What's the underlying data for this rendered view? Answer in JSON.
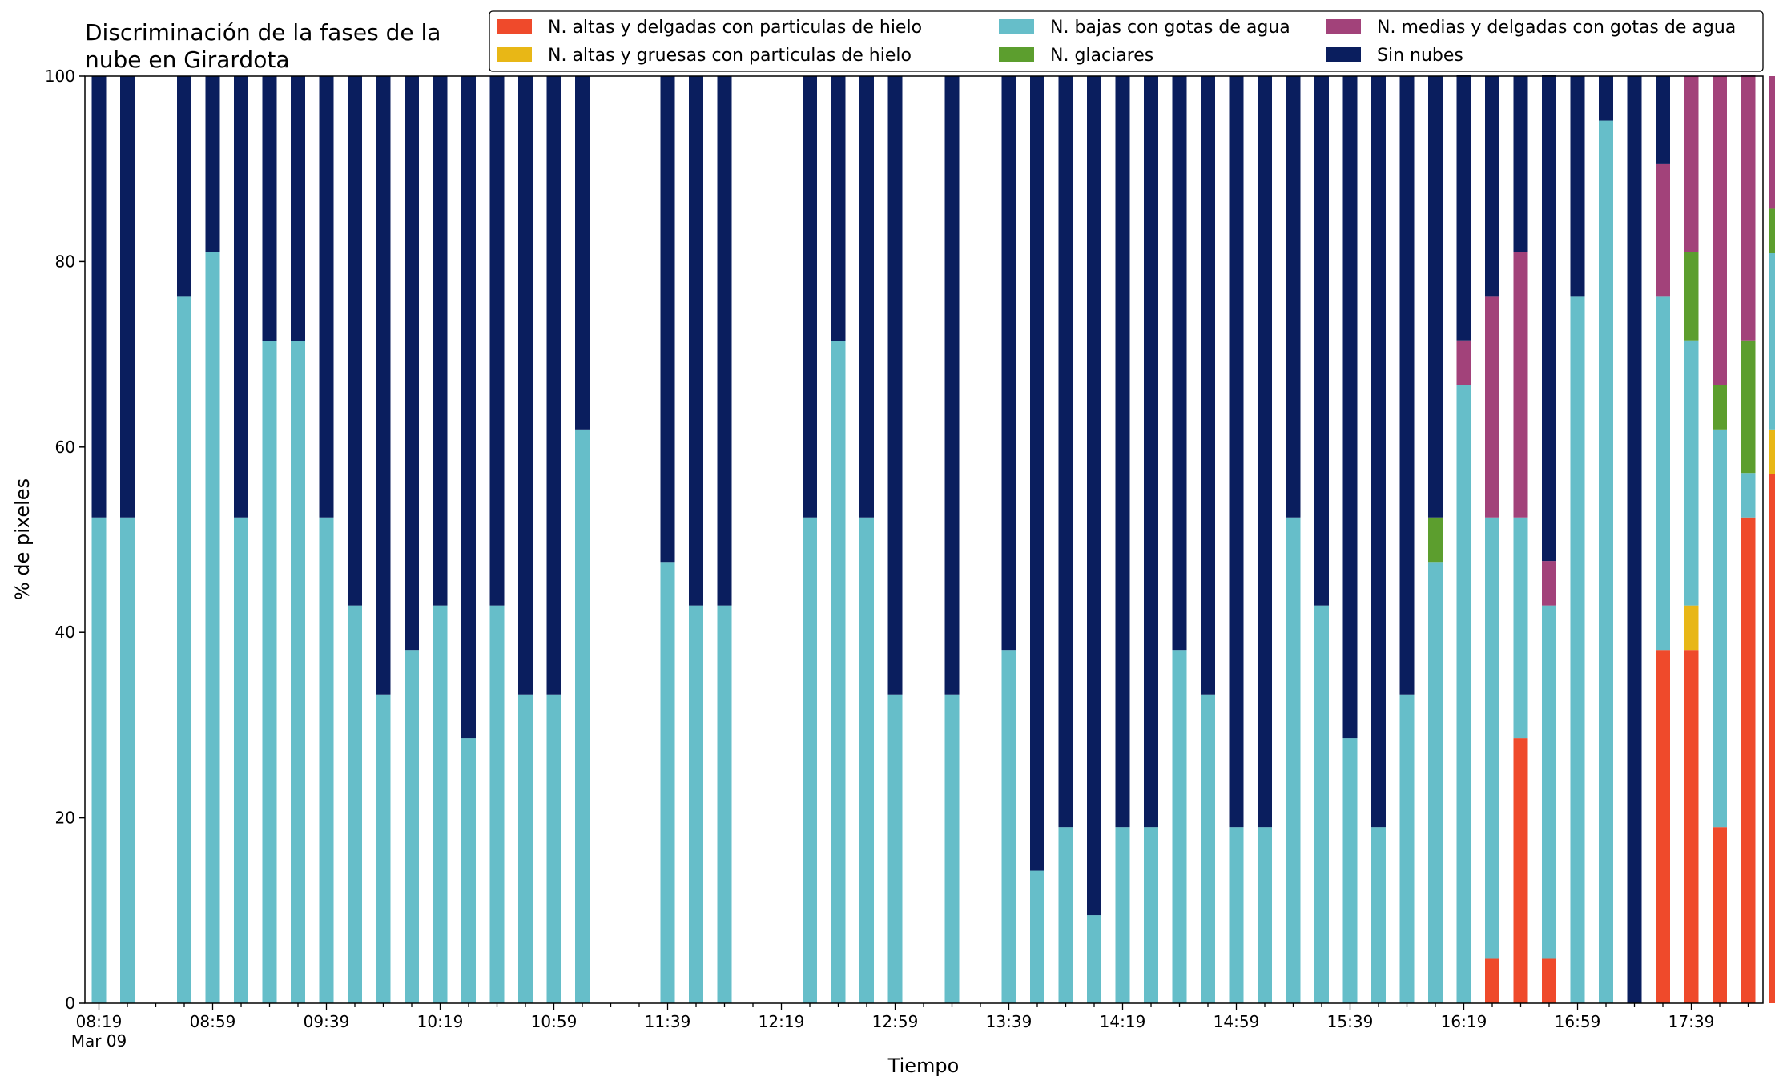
{
  "chart_data": {
    "type": "bar",
    "stacked": true,
    "title": "Discriminación de la fases de la\nnube en Girardota",
    "xlabel": "Tiempo",
    "ylabel": "% de pixeles",
    "ylim": [
      0,
      100
    ],
    "yticks": [
      0,
      20,
      40,
      60,
      80,
      100
    ],
    "grid": false,
    "legend_position": "top",
    "x_start": "08:19",
    "x_step_minutes": 10,
    "x_tick_labels": [
      {
        "index": 0,
        "label": "08:19",
        "sublabel": "Mar 09"
      },
      {
        "index": 4,
        "label": "08:59"
      },
      {
        "index": 8,
        "label": "09:39"
      },
      {
        "index": 12,
        "label": "10:19"
      },
      {
        "index": 16,
        "label": "10:59"
      },
      {
        "index": 20,
        "label": "11:39"
      },
      {
        "index": 24,
        "label": "12:19"
      },
      {
        "index": 28,
        "label": "12:59"
      },
      {
        "index": 32,
        "label": "13:39"
      },
      {
        "index": 36,
        "label": "14:19"
      },
      {
        "index": 40,
        "label": "14:59"
      },
      {
        "index": 44,
        "label": "15:39"
      },
      {
        "index": 48,
        "label": "16:19"
      },
      {
        "index": 52,
        "label": "16:59"
      },
      {
        "index": 56,
        "label": "17:39"
      }
    ],
    "series": [
      {
        "name": "N. altas y delgadas con particulas de hielo",
        "color": "#ef4a2b",
        "values": [
          0,
          0,
          null,
          0,
          0,
          0,
          0,
          0,
          0,
          0,
          0,
          0,
          0,
          0,
          0,
          0,
          0,
          0,
          null,
          null,
          0,
          0,
          0,
          null,
          null,
          0,
          0,
          0,
          0,
          null,
          0,
          null,
          0,
          0,
          0,
          0,
          0,
          0,
          0,
          0,
          0,
          0,
          0,
          0,
          0,
          0,
          0,
          0,
          0,
          4.8,
          28.6,
          4.8,
          0,
          0,
          0,
          38.1,
          38.1,
          19.0,
          52.4,
          57.1
        ]
      },
      {
        "name": "N. altas y gruesas con particulas de hielo",
        "color": "#e8b716",
        "values": [
          0,
          0,
          null,
          0,
          0,
          0,
          0,
          0,
          0,
          0,
          0,
          0,
          0,
          0,
          0,
          0,
          0,
          0,
          null,
          null,
          0,
          0,
          0,
          null,
          null,
          0,
          0,
          0,
          0,
          null,
          0,
          null,
          0,
          0,
          0,
          0,
          0,
          0,
          0,
          0,
          0,
          0,
          0,
          0,
          0,
          0,
          0,
          0,
          0,
          0,
          0,
          0,
          0,
          0,
          0,
          0,
          4.8,
          0,
          0,
          4.8
        ]
      },
      {
        "name": "N. bajas con gotas de agua",
        "color": "#66bec9",
        "values": [
          52.4,
          52.4,
          null,
          76.2,
          81.0,
          52.4,
          71.4,
          71.4,
          52.4,
          42.9,
          33.3,
          38.1,
          42.9,
          28.6,
          42.9,
          33.3,
          33.3,
          61.9,
          null,
          null,
          47.6,
          42.9,
          42.9,
          null,
          null,
          52.4,
          71.4,
          52.4,
          33.3,
          null,
          33.3,
          null,
          38.1,
          14.3,
          19.0,
          9.5,
          19.0,
          19.0,
          38.1,
          33.3,
          19.0,
          19.0,
          52.4,
          42.9,
          28.6,
          19.0,
          33.3,
          47.6,
          66.7,
          47.6,
          23.8,
          38.1,
          76.2,
          95.2,
          0,
          38.1,
          28.6,
          42.9,
          4.8,
          19.0
        ]
      },
      {
        "name": "N. glaciares",
        "color": "#5c9e2e",
        "values": [
          0,
          0,
          null,
          0,
          0,
          0,
          0,
          0,
          0,
          0,
          0,
          0,
          0,
          0,
          0,
          0,
          0,
          0,
          null,
          null,
          0,
          0,
          0,
          null,
          null,
          0,
          0,
          0,
          0,
          null,
          0,
          null,
          0,
          0,
          0,
          0,
          0,
          0,
          0,
          0,
          0,
          0,
          0,
          0,
          0,
          0,
          0,
          4.8,
          0,
          0,
          0,
          0,
          0,
          0,
          0,
          0,
          9.5,
          4.8,
          14.3,
          4.8
        ]
      },
      {
        "name": "N. medias y delgadas con gotas de agua",
        "color": "#a2427a",
        "values": [
          0,
          0,
          null,
          0,
          0,
          0,
          0,
          0,
          0,
          0,
          0,
          0,
          0,
          0,
          0,
          0,
          0,
          0,
          null,
          null,
          0,
          0,
          0,
          null,
          null,
          0,
          0,
          0,
          0,
          null,
          0,
          null,
          0,
          0,
          0,
          0,
          0,
          0,
          0,
          0,
          0,
          0,
          0,
          0,
          0,
          0,
          0,
          0,
          4.8,
          23.8,
          28.6,
          4.8,
          0,
          0,
          0,
          14.3,
          19.0,
          33.3,
          28.6,
          14.3
        ]
      },
      {
        "name": "Sin nubes",
        "color": "#0a1e5e",
        "values": [
          47.6,
          47.6,
          null,
          23.8,
          19.0,
          47.6,
          28.6,
          28.6,
          47.6,
          57.1,
          66.7,
          61.9,
          57.1,
          71.4,
          57.1,
          66.7,
          66.7,
          38.1,
          null,
          null,
          52.4,
          57.1,
          57.1,
          null,
          null,
          47.6,
          28.6,
          47.6,
          66.7,
          null,
          66.7,
          null,
          61.9,
          85.7,
          81.0,
          90.5,
          81.0,
          81.0,
          61.9,
          66.7,
          81.0,
          81.0,
          47.6,
          57.1,
          71.4,
          81.0,
          66.7,
          47.6,
          28.6,
          23.8,
          19.0,
          52.4,
          23.8,
          4.8,
          100,
          9.5,
          0,
          0,
          0,
          0
        ]
      }
    ]
  }
}
